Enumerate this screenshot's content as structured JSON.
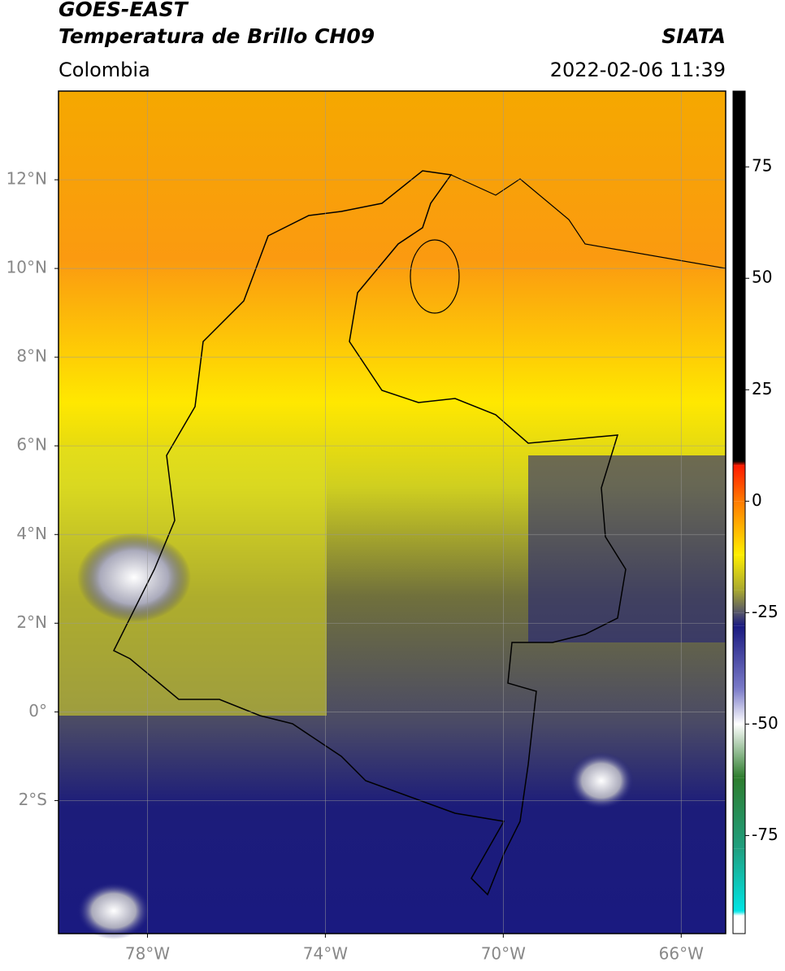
{
  "chart_data": {
    "type": "map",
    "title": "GOES-EAST",
    "subtitle": "Temperatura de Brillo CH09",
    "region": "Colombia",
    "source": "SIATA",
    "datetime": "2022-02-06 11:39",
    "xlim": [
      -80,
      -65
    ],
    "ylim": [
      -5,
      14
    ],
    "xticks": [
      {
        "value": -78,
        "label": "78°W"
      },
      {
        "value": -74,
        "label": "74°W"
      },
      {
        "value": -70,
        "label": "70°W"
      },
      {
        "value": -66,
        "label": "66°W"
      }
    ],
    "yticks": [
      {
        "value": 12,
        "label": "12°N"
      },
      {
        "value": 10,
        "label": "10°N"
      },
      {
        "value": 8,
        "label": "8°N"
      },
      {
        "value": 6,
        "label": "6°N"
      },
      {
        "value": 4,
        "label": "4°N"
      },
      {
        "value": 2,
        "label": "2°N"
      },
      {
        "value": 0,
        "label": "0°"
      },
      {
        "value": -2,
        "label": "2°S"
      }
    ],
    "grid": true,
    "colorbar": {
      "lim": [
        -97,
        92
      ],
      "ticks": [
        75,
        50,
        25,
        0,
        -25,
        -50,
        -75
      ],
      "stops": [
        {
          "value": 92,
          "color": "#000000"
        },
        {
          "value": 9,
          "color": "#000000"
        },
        {
          "value": 8,
          "color": "#ff1a00"
        },
        {
          "value": 0,
          "color": "#ff7a00"
        },
        {
          "value": -12,
          "color": "#ffee00"
        },
        {
          "value": -20,
          "color": "#a8a830"
        },
        {
          "value": -25,
          "color": "#55556a"
        },
        {
          "value": -28,
          "color": "#1a1a80"
        },
        {
          "value": -42,
          "color": "#7a7ac8"
        },
        {
          "value": -50,
          "color": "#ffffff"
        },
        {
          "value": -62,
          "color": "#2e7d2e"
        },
        {
          "value": -78,
          "color": "#20a080"
        },
        {
          "value": -92,
          "color": "#00e5e5"
        },
        {
          "value": -93,
          "color": "#ffffff"
        }
      ]
    }
  }
}
